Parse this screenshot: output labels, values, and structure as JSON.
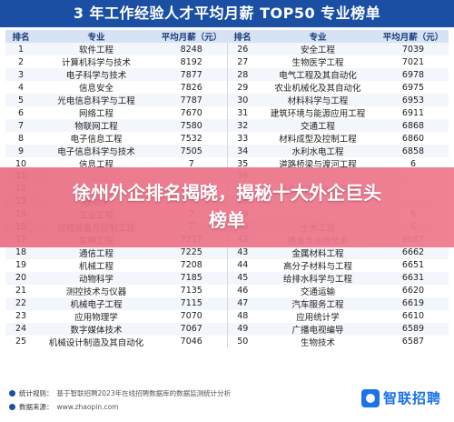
{
  "title": "3 年工作经验人才平均月薪 TOP50 专业榜单",
  "headers": [
    "排名",
    "专业",
    "平均月薪（元）",
    "排名",
    "专业",
    "平均月薪（元）"
  ],
  "rows": [
    [
      "1",
      "软件工程",
      "8248",
      "26",
      "安全工程",
      "7039"
    ],
    [
      "2",
      "计算机科学与技术",
      "8192",
      "27",
      "生物医学工程",
      "7021"
    ],
    [
      "3",
      "电子科学与技术",
      "7877",
      "28",
      "电气工程及其自动化",
      "6978"
    ],
    [
      "4",
      "信息安全",
      "7826",
      "29",
      "农业机械化及其自动化",
      "6975"
    ],
    [
      "5",
      "光电信息科学与工程",
      "7787",
      "30",
      "材料科学与工程",
      "6953"
    ],
    [
      "6",
      "网络工程",
      "7670",
      "31",
      "建筑环境与能源应用工程",
      "6911"
    ],
    [
      "7",
      "物联网工程",
      "7580",
      "32",
      "交通工程",
      "6868"
    ],
    [
      "8",
      "电子信息工程",
      "7532",
      "33",
      "材料成型及控制工程",
      "6860"
    ],
    [
      "9",
      "电子信息科学与技术",
      "7505",
      "34",
      "水利水电工程",
      "6858"
    ],
    [
      "10",
      "信息工程",
      "7",
      "35",
      "道路桥梁与渡河工程",
      "6"
    ],
    [
      "11",
      "",
      "",
      "36",
      "",
      ""
    ],
    [
      "12",
      "",
      "",
      "37",
      "信息管理与信息系统",
      ""
    ],
    [
      "13",
      "建筑学",
      "",
      "38",
      "",
      ""
    ],
    [
      "14",
      "工业工程",
      "7",
      "39",
      "",
      "6"
    ],
    [
      "15",
      "过程装备与控制工程",
      "7",
      "40",
      "土木工程",
      "6"
    ],
    [
      "17",
      "车辆工程",
      "7317",
      "42",
      "播音与主持艺术",
      "6687"
    ],
    [
      "18",
      "通信工程",
      "7225",
      "43",
      "金属材料工程",
      "6662"
    ],
    [
      "19",
      "机械工程",
      "7208",
      "44",
      "高分子材料与工程",
      "6651"
    ],
    [
      "20",
      "动物科学",
      "7185",
      "45",
      "给排水科学与工程",
      "6631"
    ],
    [
      "21",
      "测控技术与仪器",
      "7135",
      "46",
      "交通运输",
      "6620"
    ],
    [
      "22",
      "机械电子工程",
      "7115",
      "47",
      "汽车服务工程",
      "6619"
    ],
    [
      "23",
      "应用物理学",
      "7070",
      "48",
      "应用统计学",
      "6610"
    ],
    [
      "24",
      "数字媒体技术",
      "7067",
      "49",
      "广播电视编导",
      "6589"
    ],
    [
      "25",
      "机械设计制造及其自动化",
      "7046",
      "50",
      "生物技术",
      "6587"
    ]
  ],
  "overlay": {
    "line1": "徐州外企排名揭晓，揭秘十大外企巨头",
    "line2": "榜单"
  },
  "footer": {
    "rule_label": "统计规则：",
    "rule_text": "基于智联招聘2023年在线招聘数据库的数据监测统计分析",
    "source_label": "数据来源：",
    "source_text": "www.zhaopin.com",
    "logo": "智联招聘"
  },
  "colors": {
    "title_bg": "#1a4fa3",
    "header_bg": "#d6e3f5",
    "overlay": "#ea6f84",
    "brand": "#1a73e8"
  }
}
